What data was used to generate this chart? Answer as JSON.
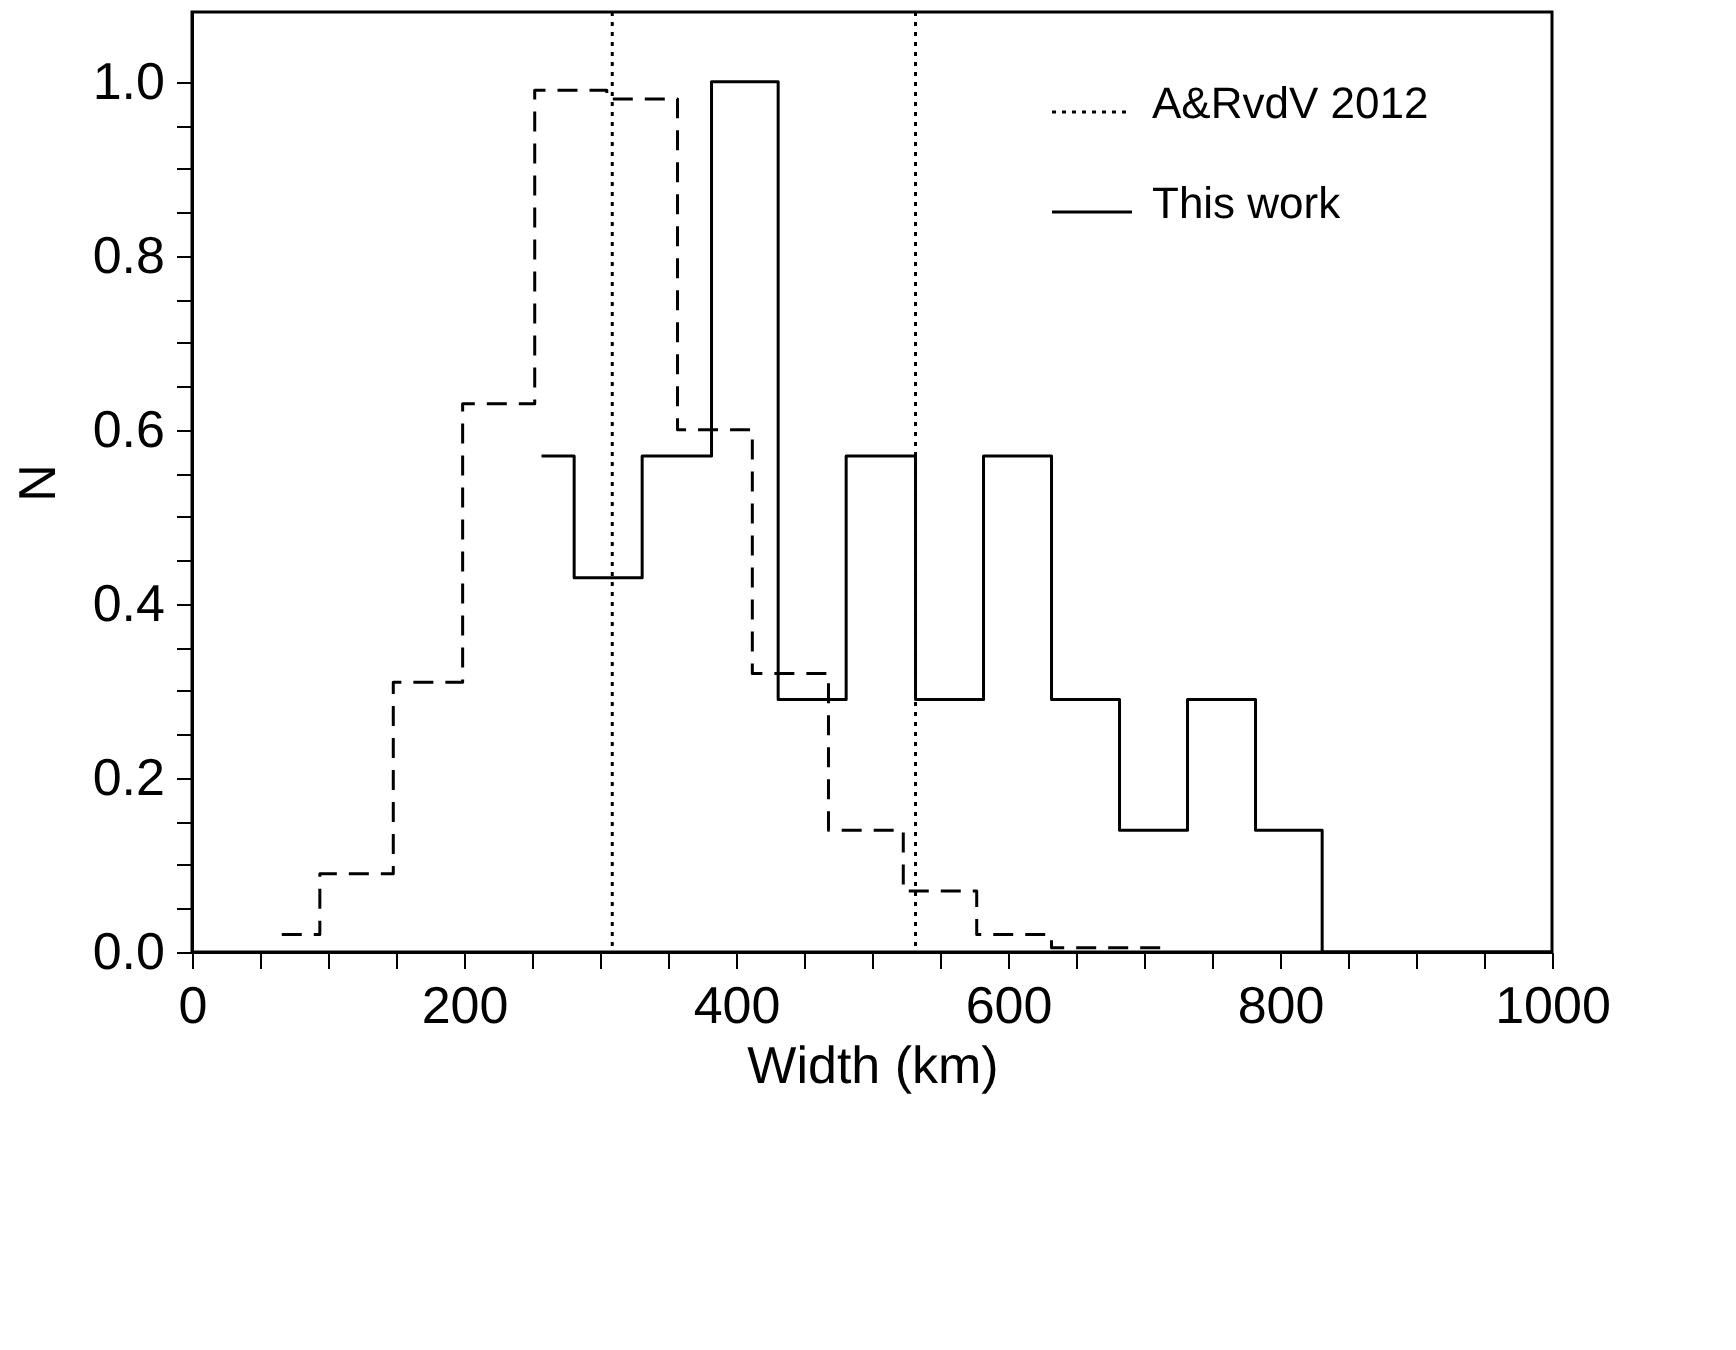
{
  "chart_data": {
    "type": "step",
    "xlabel": "Width (km)",
    "ylabel": "N",
    "xlim": [
      0,
      1000
    ],
    "ylim": [
      0,
      1.08
    ],
    "xticks": [
      0,
      {
        "value": 50,
        "label": null
      },
      {
        "value": 100,
        "label": null
      },
      {
        "value": 150,
        "label": null
      },
      200,
      {
        "value": 250,
        "label": null
      },
      {
        "value": 300,
        "label": null
      },
      {
        "value": 350,
        "label": null
      },
      400,
      {
        "value": 450,
        "label": null
      },
      {
        "value": 500,
        "label": null
      },
      {
        "value": 550,
        "label": null
      },
      600,
      {
        "value": 650,
        "label": null
      },
      {
        "value": 700,
        "label": null
      },
      {
        "value": 750,
        "label": null
      },
      800,
      {
        "value": 850,
        "label": null
      },
      {
        "value": 900,
        "label": null
      },
      {
        "value": 950,
        "label": null
      },
      1000
    ],
    "yticks": [
      {
        "value": 0,
        "label": "0.0"
      },
      {
        "value": 0.05,
        "label": null
      },
      {
        "value": 0.1,
        "label": null
      },
      {
        "value": 0.15,
        "label": null
      },
      {
        "value": 0.2,
        "label": "0.2"
      },
      {
        "value": 0.25,
        "label": null
      },
      {
        "value": 0.3,
        "label": null
      },
      {
        "value": 0.35,
        "label": null
      },
      {
        "value": 0.4,
        "label": "0.4"
      },
      {
        "value": 0.45,
        "label": null
      },
      {
        "value": 0.5,
        "label": null
      },
      {
        "value": 0.55,
        "label": null
      },
      {
        "value": 0.6,
        "label": "0.6"
      },
      {
        "value": 0.65,
        "label": null
      },
      {
        "value": 0.7,
        "label": null
      },
      {
        "value": 0.75,
        "label": null
      },
      {
        "value": 0.8,
        "label": "0.8"
      },
      {
        "value": 0.85,
        "label": null
      },
      {
        "value": 0.9,
        "label": null
      },
      {
        "value": 0.95,
        "label": null
      },
      {
        "value": 1.0,
        "label": "1.0"
      }
    ],
    "grid": false,
    "legend": "top right",
    "annotations": [
      "A&RvdV 2012"
    ],
    "series": [
      {
        "color": "#000000",
        "line_style": "dashed",
        "x": [
          66,
          94,
          148,
          199,
          252,
          305,
          357,
          412,
          468,
          523,
          577,
          632,
          714
        ],
        "values": [
          0.02,
          0.09,
          0.31,
          0.63,
          0.99,
          0.98,
          0.6,
          0.32,
          0.14,
          0.07,
          0.02,
          0.005,
          0.005
        ]
      },
      {
        "name": "This work",
        "color": "#000000",
        "line_style": "solid",
        "x": [
          257,
          281,
          331,
          382,
          431,
          481,
          532,
          582,
          632,
          682,
          732,
          782,
          831,
          1000
        ],
        "values": [
          0.57,
          0.43,
          0.57,
          1.0,
          0.29,
          0.57,
          0.29,
          0.57,
          0.29,
          0.14,
          0.29,
          0.14,
          0,
          0
        ]
      }
    ],
    "ref_lines": [
      {
        "axis": "x",
        "value": 309,
        "color": "#000000",
        "line_style": "dotted"
      },
      {
        "axis": "x",
        "value": 532,
        "color": "#000000",
        "line_style": "dotted"
      }
    ]
  }
}
